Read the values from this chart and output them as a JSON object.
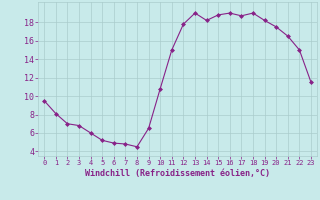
{
  "hours": [
    0,
    1,
    2,
    3,
    4,
    5,
    6,
    7,
    8,
    9,
    10,
    11,
    12,
    13,
    14,
    15,
    16,
    17,
    18,
    19,
    20,
    21,
    22,
    23
  ],
  "values": [
    9.5,
    8.1,
    7.0,
    6.8,
    6.0,
    5.2,
    4.9,
    4.8,
    4.5,
    6.5,
    10.8,
    15.0,
    17.8,
    19.0,
    18.2,
    18.8,
    19.0,
    18.7,
    19.0,
    18.2,
    17.5,
    16.5,
    15.0,
    11.5
  ],
  "line_color": "#882288",
  "marker": "D",
  "marker_size": 2.0,
  "bg_color": "#c8eaea",
  "grid_color": "#aacccc",
  "xlabel": "Windchill (Refroidissement éolien,°C)",
  "xlabel_color": "#882288",
  "tick_color": "#882288",
  "ylim": [
    3.5,
    20.2
  ],
  "xlim": [
    -0.5,
    23.5
  ],
  "yticks": [
    4,
    6,
    8,
    10,
    12,
    14,
    16,
    18
  ],
  "xticks": [
    0,
    1,
    2,
    3,
    4,
    5,
    6,
    7,
    8,
    9,
    10,
    11,
    12,
    13,
    14,
    15,
    16,
    17,
    18,
    19,
    20,
    21,
    22,
    23
  ]
}
